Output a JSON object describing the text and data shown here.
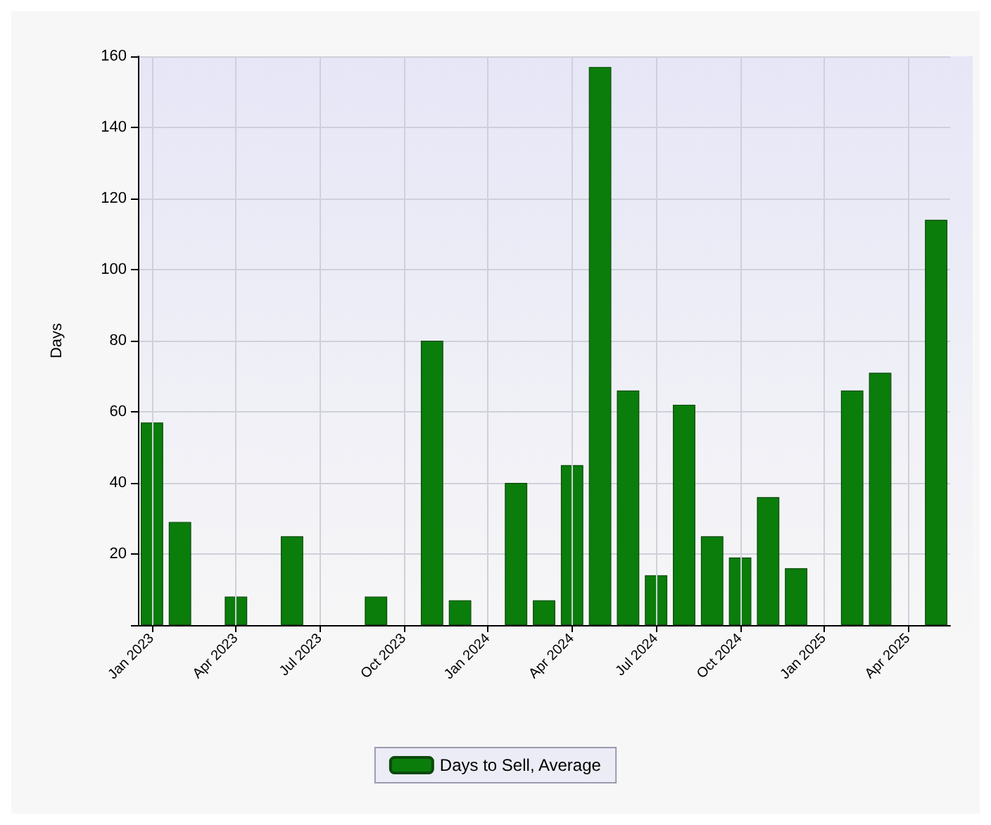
{
  "chart_data": {
    "type": "bar",
    "ylabel": "Days",
    "categories": [
      "Jan 2023",
      null,
      null,
      "Apr 2023",
      null,
      null,
      "Jul 2023",
      null,
      null,
      "Oct 2023",
      null,
      null,
      "Jan 2024",
      null,
      null,
      "Apr 2024",
      null,
      null,
      "Jul 2024",
      null,
      null,
      "Oct 2024",
      null,
      null,
      "Jan 2025",
      null,
      null,
      "Apr 2025",
      null
    ],
    "series": [
      {
        "name": "Days to Sell, Average",
        "color": "#0a7d0a",
        "values": [
          57,
          29,
          null,
          8,
          null,
          25,
          null,
          null,
          8,
          null,
          80,
          7,
          null,
          40,
          7,
          45,
          157,
          66,
          14,
          62,
          25,
          19,
          36,
          16,
          null,
          66,
          71,
          null,
          114
        ]
      }
    ],
    "ylim": [
      0,
      160
    ],
    "yticks": [
      {
        "value": 0,
        "label": null
      },
      20,
      40,
      60,
      80,
      100,
      120,
      140,
      160
    ],
    "grid": true,
    "legend": "bottom"
  }
}
